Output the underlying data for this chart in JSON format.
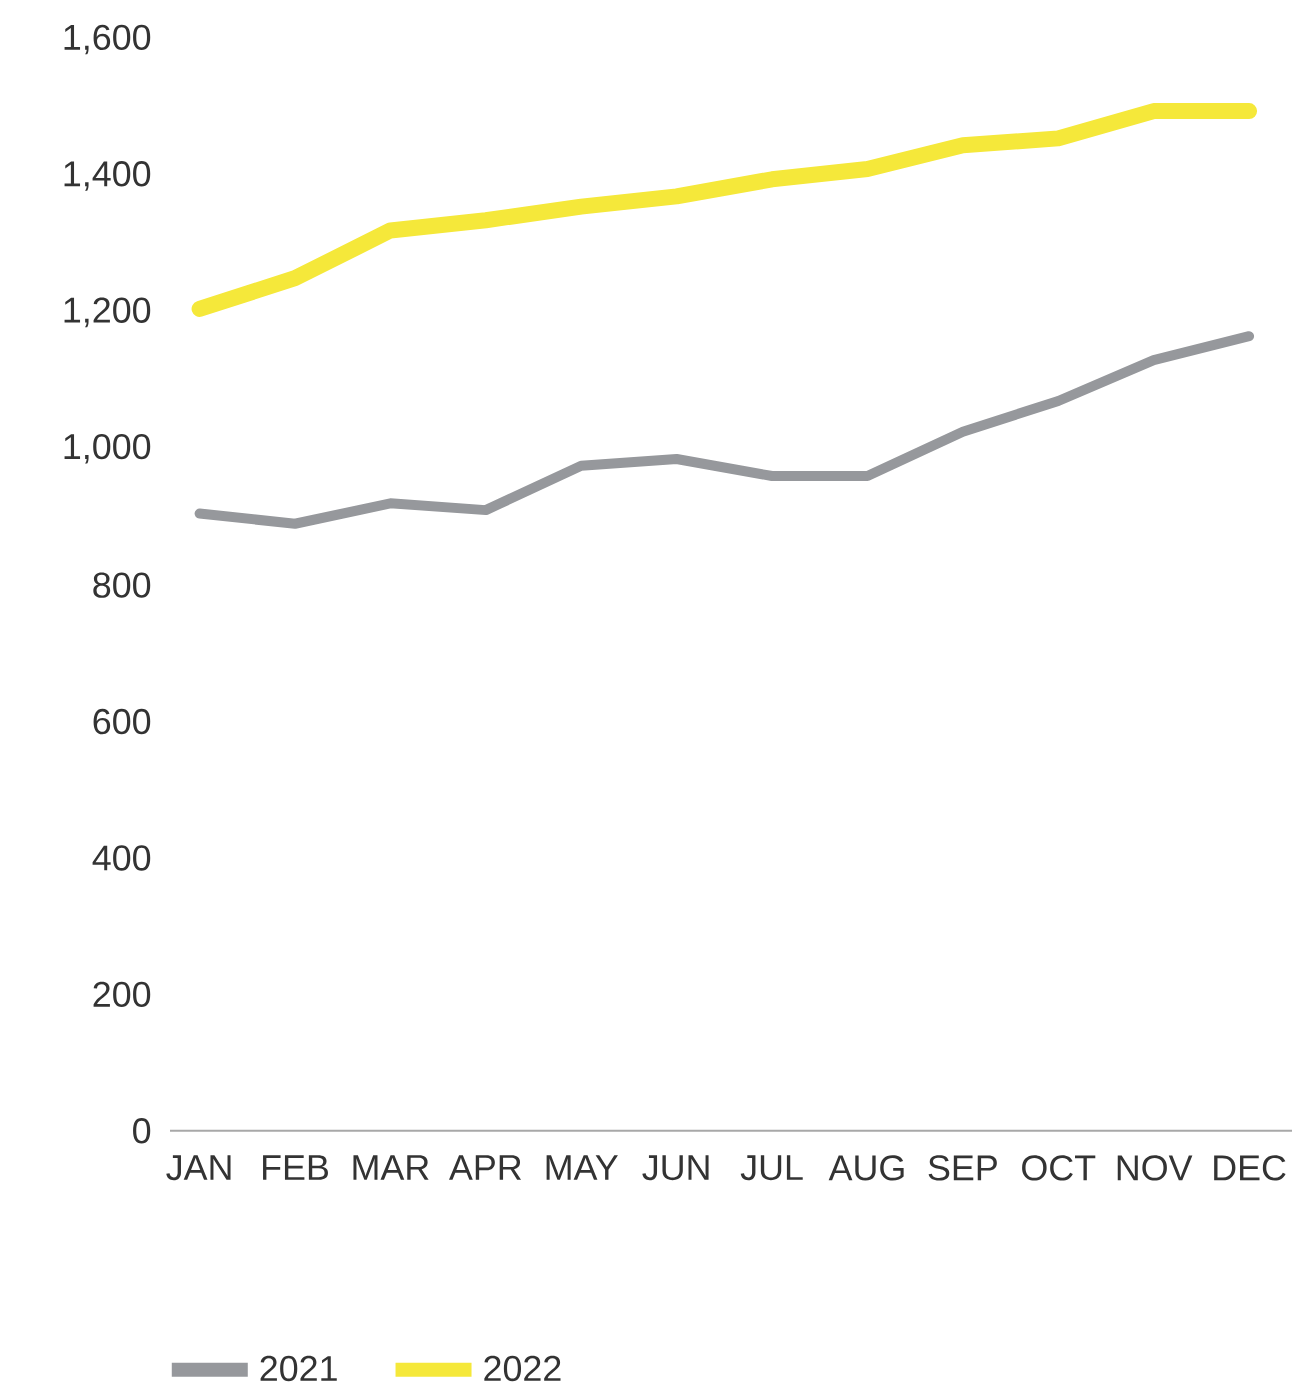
{
  "chart_data": {
    "type": "line",
    "categories": [
      "JAN",
      "FEB",
      "MAR",
      "APR",
      "MAY",
      "JUN",
      "JUL",
      "AUG",
      "SEP",
      "OCT",
      "NOV",
      "DEC"
    ],
    "series": [
      {
        "name": "2021",
        "color": "#96989c",
        "values": [
          905,
          890,
          920,
          910,
          975,
          985,
          960,
          960,
          1025,
          1070,
          1130,
          1165
        ]
      },
      {
        "name": "2022",
        "color": "#f5e83a",
        "values": [
          1205,
          1250,
          1320,
          1335,
          1355,
          1370,
          1395,
          1410,
          1445,
          1455,
          1495,
          1495
        ]
      }
    ],
    "ylim": [
      0,
      1600
    ],
    "yticks": [
      0,
      200,
      400,
      600,
      800,
      {
        "value": 1000,
        "label": "1,000"
      },
      {
        "value": 1200,
        "label": "1,200"
      },
      {
        "value": 1400,
        "label": "1,400"
      },
      {
        "value": 1600,
        "label": "1,600"
      }
    ],
    "legend": "bottom left",
    "marker": "none",
    "line_style": "solid"
  }
}
